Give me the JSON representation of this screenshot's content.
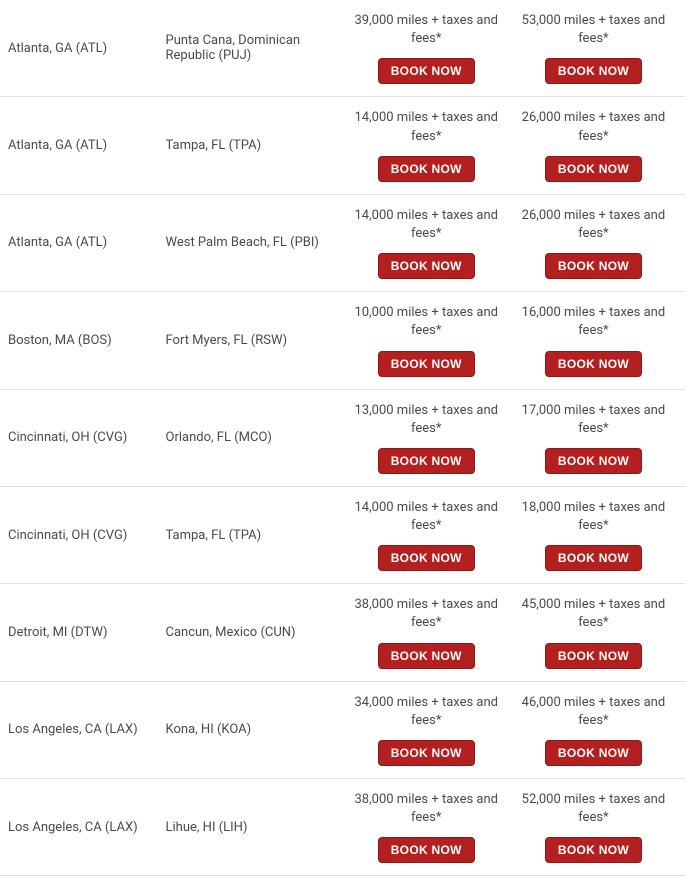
{
  "button_label": "BOOK NOW",
  "price_suffix": " miles + taxes and fees*",
  "colors": {
    "button_bg": "#b41f1f",
    "button_border": "#8a1818",
    "button_text": "#ffffff",
    "text": "#4a4a4a",
    "row_border": "#e0e0e0",
    "background": "#ffffff"
  },
  "rows": [
    {
      "origin": "Atlanta, GA (ATL)",
      "destination": "Punta Cana, Dominican Republic (PUJ)",
      "price1": "39,000",
      "price2": "53,000"
    },
    {
      "origin": "Atlanta, GA (ATL)",
      "destination": "Tampa, FL (TPA)",
      "price1": "14,000",
      "price2": "26,000"
    },
    {
      "origin": "Atlanta, GA (ATL)",
      "destination": "West Palm Beach, FL (PBI)",
      "price1": "14,000",
      "price2": "26,000"
    },
    {
      "origin": "Boston, MA (BOS)",
      "destination": "Fort Myers, FL (RSW)",
      "price1": "10,000",
      "price2": "16,000"
    },
    {
      "origin": "Cincinnati, OH (CVG)",
      "destination": "Orlando, FL (MCO)",
      "price1": "13,000",
      "price2": "17,000"
    },
    {
      "origin": "Cincinnati, OH (CVG)",
      "destination": "Tampa, FL (TPA)",
      "price1": "14,000",
      "price2": "18,000"
    },
    {
      "origin": "Detroit, MI (DTW)",
      "destination": "Cancun, Mexico (CUN)",
      "price1": "38,000",
      "price2": "45,000"
    },
    {
      "origin": "Los Angeles, CA (LAX)",
      "destination": "Kona, HI (KOA)",
      "price1": "34,000",
      "price2": "46,000"
    },
    {
      "origin": "Los Angeles, CA (LAX)",
      "destination": "Lihue, HI (LIH)",
      "price1": "38,000",
      "price2": "52,000"
    }
  ]
}
